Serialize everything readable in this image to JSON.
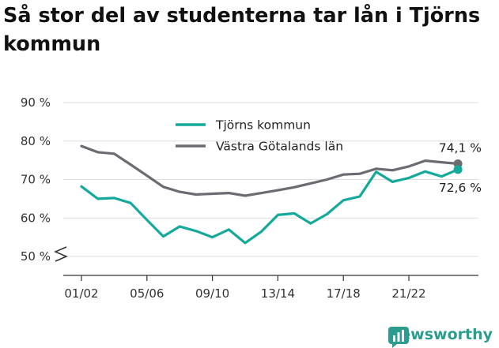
{
  "title": "Så stor del av studenterna tar lån i Tjörns kommun",
  "brand": "Newsworthy",
  "colors": {
    "tjorn": "#14a99b",
    "vg": "#6b6b72",
    "grid": "#dddddd",
    "axis": "#333333"
  },
  "chart_data": {
    "type": "line",
    "title": "Så stor del av studenterna tar lån i Tjörns kommun",
    "xlabel": "",
    "ylabel": "",
    "ylim": [
      50,
      90
    ],
    "yticks": [
      "50 %",
      "60 %",
      "70 %",
      "80 %",
      "90 %"
    ],
    "ytick_values": [
      50,
      60,
      70,
      80,
      90
    ],
    "x_tick_labels": [
      "01/02",
      "05/06",
      "09/10",
      "13/14",
      "17/18",
      "21/22"
    ],
    "x_tick_positions": [
      0,
      4,
      8,
      12,
      16,
      20
    ],
    "categories": [
      "01/02",
      "02/03",
      "03/04",
      "04/05",
      "05/06",
      "06/07",
      "07/08",
      "08/09",
      "09/10",
      "10/11",
      "11/12",
      "12/13",
      "13/14",
      "14/15",
      "15/16",
      "16/17",
      "17/18",
      "18/19",
      "19/20",
      "20/21",
      "21/22",
      "22/23",
      "23/24",
      "24/25"
    ],
    "legend_position": "top",
    "grid": true,
    "series": [
      {
        "name": "Tjörns kommun",
        "color": "#14a99b",
        "values": [
          68.2,
          65.0,
          65.2,
          63.9,
          59.5,
          55.2,
          57.8,
          56.6,
          55.0,
          57.0,
          53.5,
          56.5,
          60.8,
          61.2,
          58.6,
          61.0,
          64.6,
          65.6,
          72.0,
          69.4,
          70.4,
          72.1,
          70.8,
          72.6
        ],
        "end_label": "72,6 %"
      },
      {
        "name": "Västra Götalands län",
        "color": "#6b6b72",
        "values": [
          78.7,
          77.1,
          76.7,
          73.9,
          71.0,
          68.1,
          66.8,
          66.1,
          66.3,
          66.5,
          65.8,
          66.5,
          67.2,
          68.0,
          69.0,
          70.0,
          71.3,
          71.5,
          72.8,
          72.4,
          73.4,
          74.9,
          74.5,
          74.1
        ],
        "end_label": "74,1 %"
      }
    ]
  }
}
